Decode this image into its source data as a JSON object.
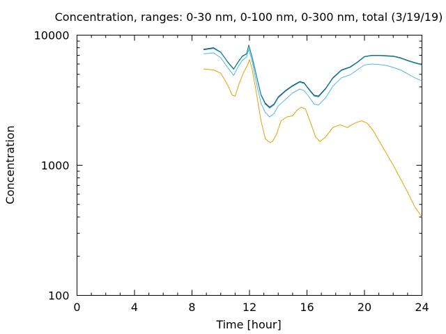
{
  "chart_data": {
    "type": "line",
    "title": "Concentration, ranges: 0-30 nm, 0-100 nm, 0-300 nm, total (3/19/19)",
    "xlabel": "Time [hour]",
    "ylabel": "Concentration",
    "xlim": [
      0,
      24
    ],
    "ylim": [
      100,
      10000
    ],
    "yscale": "log",
    "grid": false,
    "legend": "none",
    "xticks": [
      "0",
      "4",
      "8",
      "12",
      "16",
      "20",
      "24"
    ],
    "yticks": [
      "100",
      "1000",
      "10000"
    ],
    "series": [
      {
        "color": "#1a2a6c",
        "x": [
          8.8,
          9.5,
          10.0,
          10.5,
          10.9,
          11.2,
          11.5,
          11.8,
          11.95,
          12.2,
          12.5,
          12.8,
          13.1,
          13.4,
          13.7,
          14.0,
          14.5,
          15.0,
          15.5,
          15.8,
          16.1,
          16.5,
          16.8,
          17.3,
          17.8,
          18.4,
          19.0,
          19.5,
          20.0,
          20.5,
          21.0,
          21.5,
          22.0,
          22.5,
          23.0,
          23.5,
          24.0
        ],
        "y": [
          7800,
          8000,
          7400,
          6200,
          5500,
          6200,
          6900,
          7200,
          8400,
          6700,
          4800,
          3500,
          3000,
          2800,
          2950,
          3350,
          3750,
          4100,
          4400,
          4300,
          3900,
          3450,
          3400,
          3900,
          4700,
          5400,
          5700,
          6200,
          6850,
          7000,
          7000,
          6950,
          6900,
          6700,
          6400,
          6150,
          5950
        ]
      },
      {
        "color": "#0aa0a0",
        "x": [
          8.8,
          9.5,
          10.0,
          10.5,
          10.9,
          11.2,
          11.5,
          11.8,
          11.95,
          12.2,
          12.5,
          12.8,
          13.1,
          13.4,
          13.7,
          14.0,
          14.5,
          15.0,
          15.5,
          15.8,
          16.1,
          16.5,
          16.8,
          17.3,
          17.8,
          18.4,
          19.0,
          19.5,
          20.0,
          20.5,
          21.0,
          21.5,
          22.0,
          22.5,
          23.0,
          23.5,
          24.0
        ],
        "y": [
          7700,
          7900,
          7350,
          6150,
          5450,
          6150,
          6850,
          7150,
          8300,
          6650,
          4750,
          3450,
          2950,
          2750,
          2900,
          3300,
          3700,
          4050,
          4350,
          4250,
          3850,
          3400,
          3350,
          3850,
          4650,
          5350,
          5650,
          6150,
          6800,
          6950,
          6950,
          6900,
          6850,
          6650,
          6350,
          6100,
          5900
        ]
      },
      {
        "color": "#56b4e9",
        "x": [
          8.8,
          9.5,
          10.0,
          10.5,
          10.9,
          11.2,
          11.5,
          11.8,
          11.95,
          12.2,
          12.5,
          12.8,
          13.1,
          13.4,
          13.7,
          14.0,
          14.5,
          15.0,
          15.5,
          15.8,
          16.1,
          16.5,
          16.8,
          17.3,
          17.8,
          18.4,
          19.0,
          19.5,
          20.0,
          20.5,
          21.0,
          21.5,
          22.0,
          22.5,
          23.0,
          23.5,
          24.0
        ],
        "y": [
          7200,
          7300,
          6700,
          5600,
          4900,
          5700,
          6400,
          6800,
          7800,
          6200,
          4200,
          3000,
          2550,
          2350,
          2500,
          2850,
          3200,
          3600,
          3850,
          3750,
          3400,
          2950,
          2900,
          3300,
          4050,
          4700,
          4950,
          5400,
          5900,
          6000,
          5950,
          5850,
          5650,
          5400,
          5050,
          4700,
          4450
        ]
      },
      {
        "color": "#e69f00",
        "x": [
          8.8,
          9.5,
          10.0,
          10.5,
          10.8,
          11.0,
          11.3,
          11.6,
          11.9,
          12.0,
          12.2,
          12.5,
          12.8,
          13.1,
          13.4,
          13.6,
          13.9,
          14.2,
          14.6,
          15.0,
          15.3,
          15.6,
          15.9,
          16.2,
          16.6,
          16.9,
          17.3,
          17.8,
          18.3,
          18.8,
          19.3,
          19.8,
          20.2,
          20.6,
          21.0,
          21.5,
          22.0,
          22.5,
          23.0,
          23.5,
          24.0
        ],
        "y": [
          5500,
          5400,
          5100,
          4100,
          3450,
          3400,
          4300,
          5200,
          6000,
          6500,
          5400,
          3500,
          2200,
          1600,
          1500,
          1520,
          1750,
          2200,
          2350,
          2400,
          2650,
          2800,
          2700,
          2200,
          1650,
          1520,
          1650,
          1950,
          2050,
          1950,
          2100,
          2200,
          2100,
          1850,
          1550,
          1250,
          1000,
          790,
          620,
          480,
          400
        ]
      }
    ]
  }
}
